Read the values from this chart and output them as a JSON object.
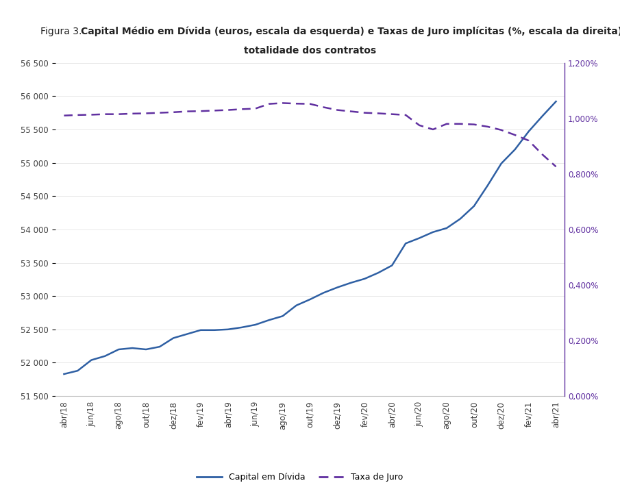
{
  "x_labels": [
    "abr/18",
    "jun/18",
    "ago/18",
    "out/18",
    "dez/18",
    "fev/19",
    "abr/19",
    "jun/19",
    "ago/19",
    "out/19",
    "dez/19",
    "fev/20",
    "abr/20",
    "jun/20",
    "ago/20",
    "out/20",
    "dez/20",
    "fev/21",
    "abr/21"
  ],
  "capital_values": [
    51830,
    51880,
    52040,
    52100,
    52200,
    52220,
    52200,
    52240,
    52370,
    52430,
    52490,
    52490,
    52500,
    52530,
    52570,
    52640,
    52700,
    52860,
    52950,
    53050,
    53130,
    53200,
    53260,
    53350,
    53460,
    53790,
    53870,
    53960,
    54020,
    54160,
    54350,
    54660,
    54990,
    55200,
    55470,
    55700,
    55920
  ],
  "taxa_values": [
    0.0101,
    0.01012,
    0.01013,
    0.01015,
    0.01015,
    0.01017,
    0.01018,
    0.0102,
    0.01022,
    0.01025,
    0.01026,
    0.01028,
    0.0103,
    0.01033,
    0.01035,
    0.01052,
    0.01055,
    0.01053,
    0.01052,
    0.0104,
    0.0103,
    0.01025,
    0.0102,
    0.01018,
    0.01015,
    0.01012,
    0.00975,
    0.0096,
    0.0098,
    0.0098,
    0.00978,
    0.0097,
    0.00958,
    0.0094,
    0.0092,
    0.0087,
    0.00826
  ],
  "ylim_left": [
    51500,
    56500
  ],
  "ylim_right": [
    0.0,
    0.012
  ],
  "capital_color": "#2e5fa3",
  "taxa_color": "#6030a0",
  "background_color": "#ffffff",
  "legend_label_capital": "Capital em Dívida",
  "legend_label_taxa": "Taxa de Juro",
  "left_yticks": [
    51500,
    52000,
    52500,
    53000,
    53500,
    54000,
    54500,
    55000,
    55500,
    56000,
    56500
  ],
  "right_yticks": [
    0.0,
    0.002,
    0.004,
    0.006,
    0.008,
    0.01,
    0.012
  ],
  "right_ytick_labels": [
    "0,000%",
    "0,200%",
    "0,400%",
    "0,600%",
    "0,800%",
    "1,000%",
    "1,200%"
  ],
  "title_prefix": "Figura 3. ",
  "title_bold": "Capital Médio em Dívida (euros, escala da esquerda) e Taxas de Juro implícitas (%, escala da direita) para a",
  "title_line2": "totalidade dos contratos",
  "grid_color": "#e8e8e8",
  "spine_color": "#c0c0c0",
  "tick_color": "#404040"
}
